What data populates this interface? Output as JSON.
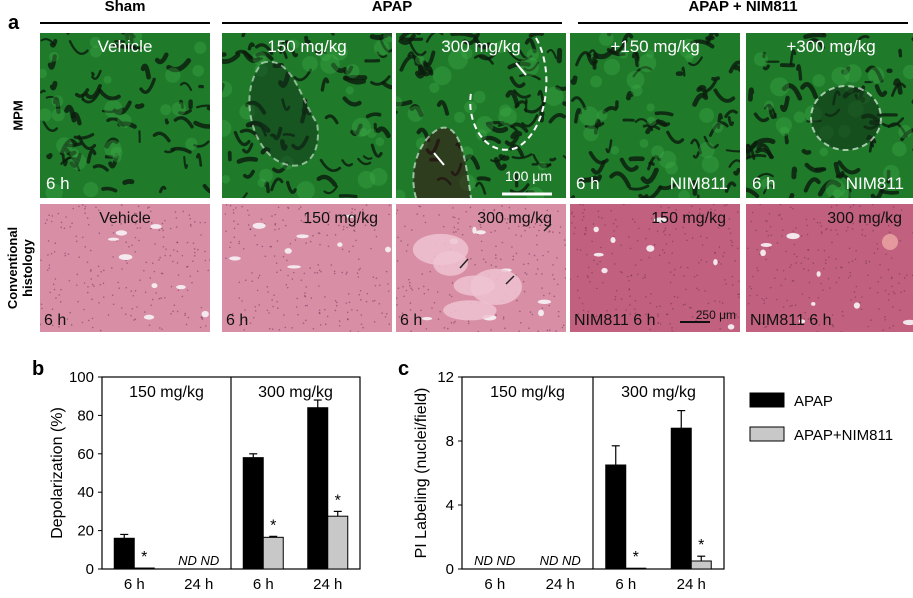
{
  "panel_a": {
    "letter": "a",
    "groups": [
      "Sham",
      "APAP",
      "APAP + NIM811"
    ],
    "row_labels": {
      "mpm": "MPM",
      "histology": "Conventional histology"
    },
    "mpm_tiles": [
      {
        "top": "Vehicle",
        "bottom": "6 h",
        "bottom2": ""
      },
      {
        "top": "150 mg/kg",
        "bottom": "",
        "bottom2": ""
      },
      {
        "top": "300 mg/kg",
        "bottom": "",
        "bottom2": "",
        "scale": "100 μm"
      },
      {
        "top": "+150 mg/kg",
        "bottom": "6 h",
        "bottom2": "NIM811"
      },
      {
        "top": "+300 mg/kg",
        "bottom": "6 h",
        "bottom2": "NIM811"
      }
    ],
    "histology_tiles": [
      {
        "top": "Vehicle",
        "bottom": "6 h"
      },
      {
        "top": "150 mg/kg",
        "bottom": "6 h"
      },
      {
        "top": "300 mg/kg",
        "bottom": "6 h"
      },
      {
        "top": "150 mg/kg",
        "bottom": "NIM811 6 h",
        "scale": "250 μm"
      },
      {
        "top": "300 mg/kg",
        "bottom": "NIM811 6 h"
      }
    ],
    "colors": {
      "mpm_bg": "#1f7a2a",
      "mpm_vessel": "#0b1a0c",
      "histology_bg": "#d88fa6",
      "histology_dark": "#c2617f"
    }
  },
  "chart_data": [
    {
      "type": "bar",
      "letter": "b",
      "ylabel": "Depolarization (%)",
      "ylim": [
        0,
        100
      ],
      "yticks": [
        0,
        20,
        40,
        60,
        80,
        100
      ],
      "groups": [
        "150 mg/kg",
        "300 mg/kg"
      ],
      "categories": [
        "6 h",
        "24 h",
        "6 h",
        "24 h"
      ],
      "series": [
        {
          "name": "APAP",
          "color": "#000000",
          "values": [
            16,
            null,
            58,
            84
          ],
          "errors": [
            2,
            null,
            2,
            4
          ]
        },
        {
          "name": "APAP+NIM811",
          "color": "#c8c8c8",
          "values": [
            0.5,
            null,
            16.5,
            27.5
          ],
          "errors": [
            0,
            null,
            0.5,
            2.5
          ]
        }
      ],
      "stars": [
        "*",
        "",
        "*",
        "*"
      ],
      "nd": [
        "",
        "ND ND",
        "",
        ""
      ]
    },
    {
      "type": "bar",
      "letter": "c",
      "ylabel": "PI Labeling (nuclei/field)",
      "ylim": [
        0,
        12
      ],
      "yticks": [
        0,
        4,
        8,
        12
      ],
      "groups": [
        "150 mg/kg",
        "300 mg/kg"
      ],
      "categories": [
        "6 h",
        "24 h",
        "6 h",
        "24 h"
      ],
      "series": [
        {
          "name": "APAP",
          "color": "#000000",
          "values": [
            null,
            null,
            6.5,
            8.8
          ],
          "errors": [
            null,
            null,
            1.2,
            1.1
          ]
        },
        {
          "name": "APAP+NIM811",
          "color": "#c8c8c8",
          "values": [
            null,
            null,
            0.05,
            0.5
          ],
          "errors": [
            null,
            null,
            0,
            0.3
          ]
        }
      ],
      "stars": [
        "",
        "",
        "*",
        "*"
      ],
      "nd": [
        "ND ND",
        "ND ND",
        "",
        ""
      ],
      "legend": [
        "APAP",
        "APAP+NIM811"
      ],
      "legend_position": "right"
    }
  ]
}
